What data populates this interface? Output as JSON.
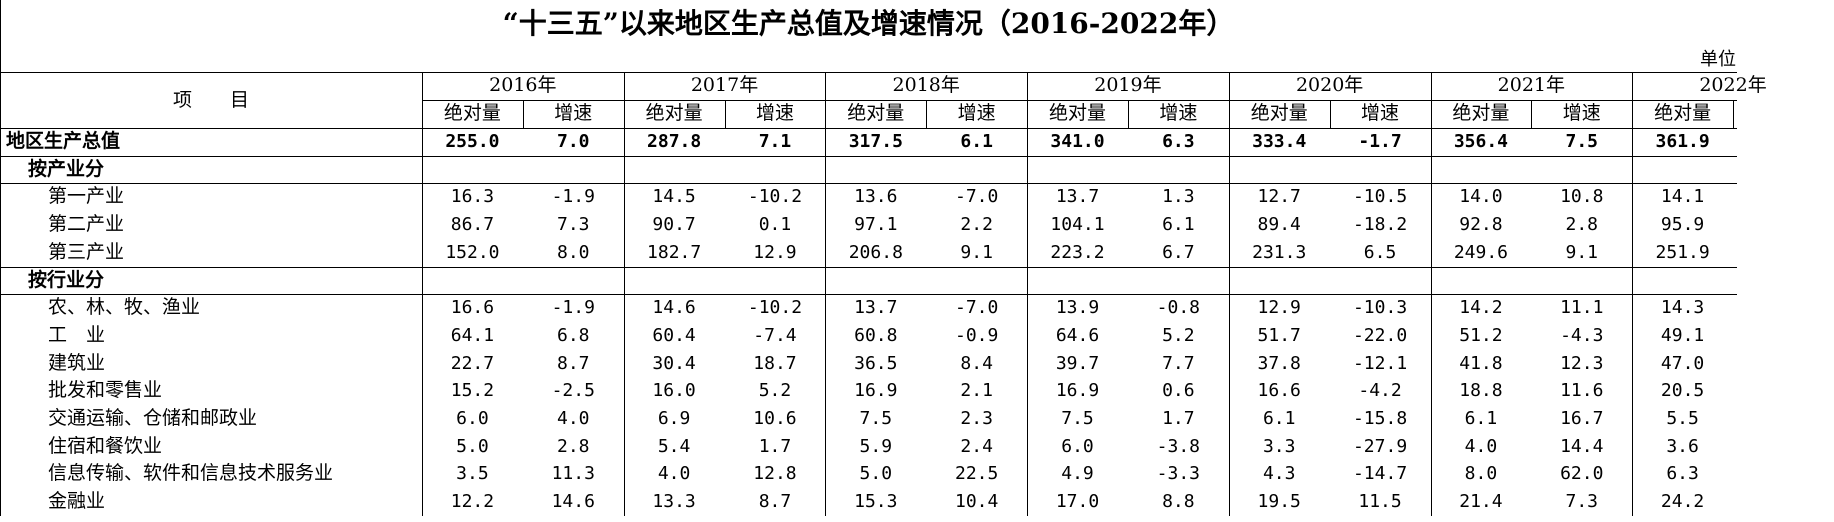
{
  "title": "“十三五”以来地区生产总值及增速情况（2016-2022年）",
  "unit": "单位",
  "header": {
    "item": "项　　目",
    "columns": [
      {
        "year": "2016年",
        "abs": "绝对量",
        "growth": "增速"
      },
      {
        "year": "2017年",
        "abs": "绝对量",
        "growth": "增速"
      },
      {
        "year": "2018年",
        "abs": "绝对量",
        "growth": "增速"
      },
      {
        "year": "2019年",
        "abs": "绝对量",
        "growth": "增速"
      },
      {
        "year": "2020年",
        "abs": "绝对量",
        "growth": "增速"
      },
      {
        "year": "2021年",
        "abs": "绝对量",
        "growth": "增速"
      },
      {
        "year": "2022年",
        "abs": "绝对量"
      }
    ]
  },
  "table": {
    "rows": [
      {
        "label": "地区生产总值",
        "style": "total",
        "values": [
          "255.0",
          "7.0",
          "287.8",
          "7.1",
          "317.5",
          "6.1",
          "341.0",
          "6.3",
          "333.4",
          "-1.7",
          "356.4",
          "7.5",
          "361.9"
        ]
      },
      {
        "label": "按产业分",
        "style": "section",
        "values": []
      },
      {
        "label": "第一产业",
        "style": "item",
        "values": [
          "16.3",
          "-1.9",
          "14.5",
          "-10.2",
          "13.6",
          "-7.0",
          "13.7",
          "1.3",
          "12.7",
          "-10.5",
          "14.0",
          "10.8",
          "14.1"
        ]
      },
      {
        "label": "第二产业",
        "style": "item",
        "values": [
          "86.7",
          "7.3",
          "90.7",
          "0.1",
          "97.1",
          "2.2",
          "104.1",
          "6.1",
          "89.4",
          "-18.2",
          "92.8",
          "2.8",
          "95.9"
        ]
      },
      {
        "label": "第三产业",
        "style": "item",
        "values": [
          "152.0",
          "8.0",
          "182.7",
          "12.9",
          "206.8",
          "9.1",
          "223.2",
          "6.7",
          "231.3",
          "6.5",
          "249.6",
          "9.1",
          "251.9"
        ]
      },
      {
        "label": "按行业分",
        "style": "section",
        "values": []
      },
      {
        "label": "农、林、牧、渔业",
        "style": "item",
        "values": [
          "16.6",
          "-1.9",
          "14.6",
          "-10.2",
          "13.7",
          "-7.0",
          "13.9",
          "-0.8",
          "12.9",
          "-10.3",
          "14.2",
          "11.1",
          "14.3"
        ]
      },
      {
        "label": "工　业",
        "style": "item",
        "values": [
          "64.1",
          "6.8",
          "60.4",
          "-7.4",
          "60.8",
          "-0.9",
          "64.6",
          "5.2",
          "51.7",
          "-22.0",
          "51.2",
          "-4.3",
          "49.1"
        ]
      },
      {
        "label": "建筑业",
        "style": "item",
        "values": [
          "22.7",
          "8.7",
          "30.4",
          "18.7",
          "36.5",
          "8.4",
          "39.7",
          "7.7",
          "37.8",
          "-12.1",
          "41.8",
          "12.3",
          "47.0"
        ]
      },
      {
        "label": "批发和零售业",
        "style": "item",
        "values": [
          "15.2",
          "-2.5",
          "16.0",
          "5.2",
          "16.9",
          "2.1",
          "16.9",
          "0.6",
          "16.6",
          "-4.2",
          "18.8",
          "11.6",
          "20.5"
        ]
      },
      {
        "label": "交通运输、仓储和邮政业",
        "style": "item",
        "values": [
          "6.0",
          "4.0",
          "6.9",
          "10.6",
          "7.5",
          "2.3",
          "7.5",
          "1.7",
          "6.1",
          "-15.8",
          "6.1",
          "16.7",
          "5.5"
        ]
      },
      {
        "label": "住宿和餐饮业",
        "style": "item",
        "values": [
          "5.0",
          "2.8",
          "5.4",
          "1.7",
          "5.9",
          "2.4",
          "6.0",
          "-3.8",
          "3.3",
          "-27.9",
          "4.0",
          "14.4",
          "3.6"
        ]
      },
      {
        "label": "信息传输、软件和信息技术服务业",
        "style": "item",
        "values": [
          "3.5",
          "11.3",
          "4.0",
          "12.8",
          "5.0",
          "22.5",
          "4.9",
          "-3.3",
          "4.3",
          "-14.7",
          "8.0",
          "62.0",
          "6.3"
        ]
      },
      {
        "label": "金融业",
        "style": "item",
        "values": [
          "12.2",
          "14.6",
          "13.3",
          "8.7",
          "15.3",
          "10.4",
          "17.0",
          "8.8",
          "19.5",
          "11.5",
          "21.4",
          "7.3",
          "24.2"
        ]
      }
    ]
  }
}
